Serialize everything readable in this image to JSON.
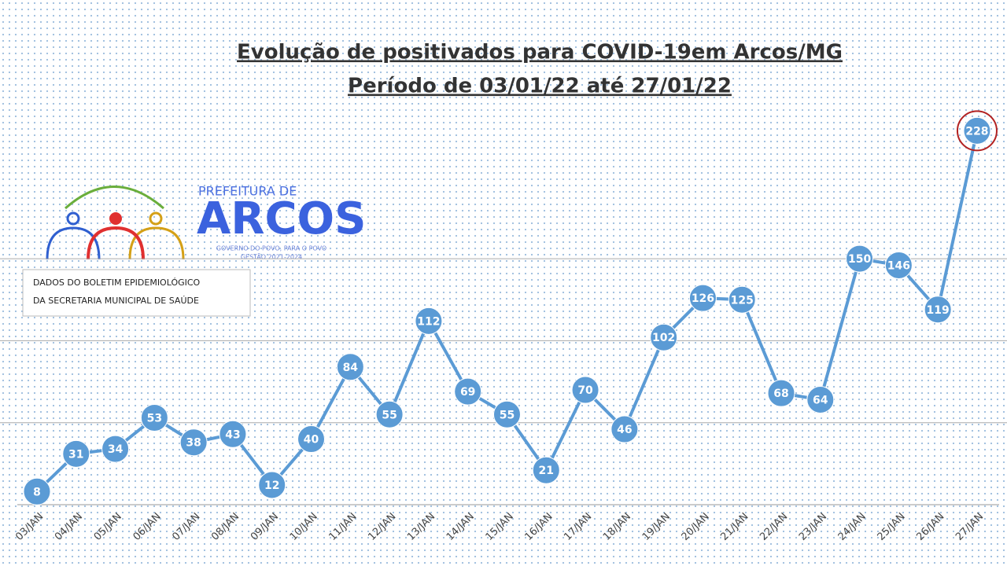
{
  "chart_data": {
    "type": "line",
    "title": "Evolução de positivados para COVID-19em Arcos/MG",
    "subtitle": "Período de 03/01/22 até 27/01/22",
    "categories": [
      "03/JAN",
      "04/JAN",
      "05/JAN",
      "06/JAN",
      "07/JAN",
      "08/JAN",
      "09/JAN",
      "10/JAN",
      "11/JAN",
      "12/JAN",
      "13/JAN",
      "14/JAN",
      "15/JAN",
      "16/JAN",
      "17/JAN",
      "18/JAN",
      "19/JAN",
      "20/JAN",
      "21/JAN",
      "22/JAN",
      "23/JAN",
      "24/JAN",
      "25/JAN",
      "26/JAN",
      "27/JAN"
    ],
    "values": [
      8,
      31,
      34,
      53,
      38,
      43,
      12,
      40,
      84,
      55,
      112,
      69,
      55,
      21,
      70,
      46,
      102,
      126,
      125,
      68,
      64,
      150,
      146,
      119,
      228
    ],
    "color": "#5b9bd5",
    "ylim": [
      0,
      250
    ],
    "yticks": [
      50,
      100,
      150
    ],
    "grid": true
  },
  "logo": {
    "top": "PREFEITURA DE",
    "name": "ARCOS",
    "motto": "GOVERNO DO POVO, PARA O POVO",
    "term": "GESTÃO 2021-2024"
  },
  "note": {
    "lines": [
      "DADOS DO BOLETIM EPIDEMIOLÓGICO",
      "DA SECRETARIA MUNICIPAL DE SAÚDE"
    ]
  }
}
